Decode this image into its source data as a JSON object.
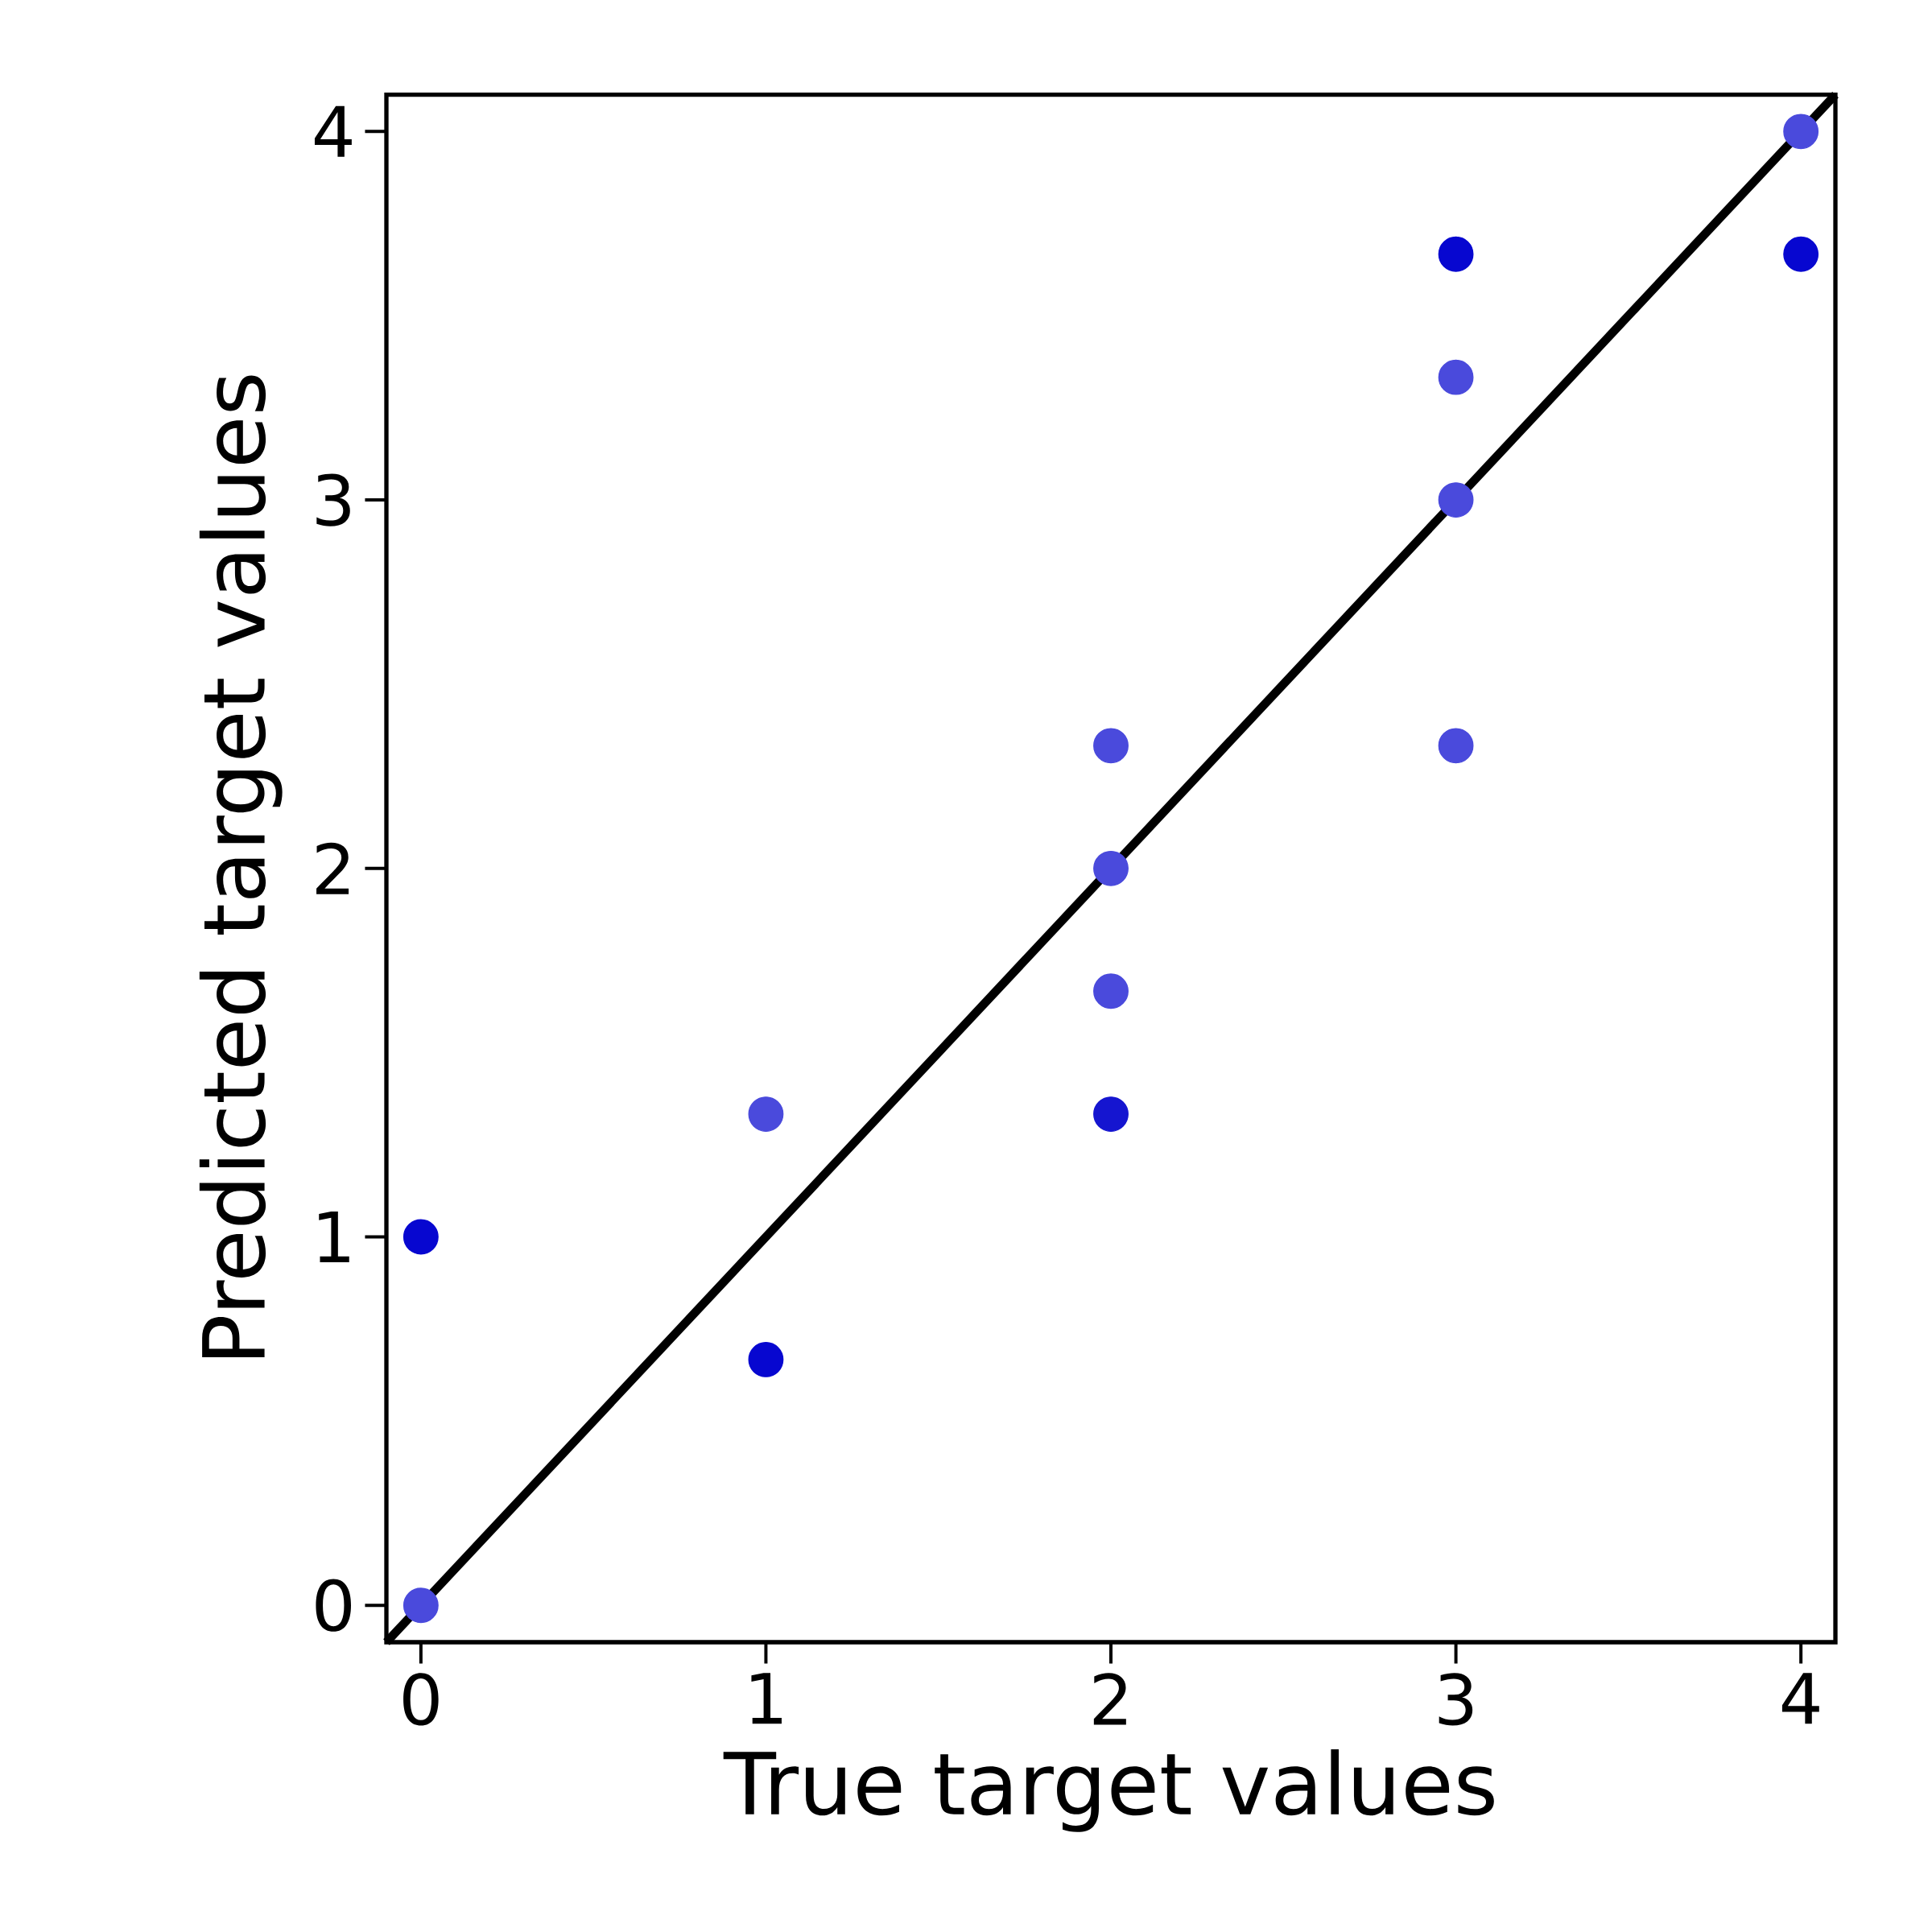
{
  "chart_data": {
    "type": "scatter",
    "xlabel": "True target values",
    "ylabel": "Predicted target values",
    "xlim": [
      -0.1,
      4.1
    ],
    "ylim": [
      -0.1,
      4.1
    ],
    "xticks": [
      0,
      1,
      2,
      3,
      4
    ],
    "yticks": [
      0,
      1,
      2,
      3,
      4
    ],
    "grid": false,
    "series": [
      {
        "marker": "circle",
        "x": [
          0,
          0,
          1,
          1,
          2,
          2,
          2,
          2,
          3,
          3,
          3,
          3,
          4,
          4
        ],
        "values": [
          0,
          1,
          0.667,
          1.333,
          1.333,
          1.667,
          2,
          2.333,
          2.333,
          3,
          3.333,
          3.667,
          3.667,
          4
        ],
        "colors": [
          "#4a4adc",
          "#0707d0",
          "#0707d0",
          "#4a4adc",
          "#1515d0",
          "#4a4adc",
          "#4a4adc",
          "#4a4adc",
          "#4a4adc",
          "#4a4adc",
          "#4a4adc",
          "#0707d0",
          "#0707d0",
          "#4a4adc"
        ]
      },
      {
        "type": "line",
        "marker": "none",
        "color": "#000000",
        "x": [
          -0.1,
          4.1
        ],
        "values": [
          -0.1,
          4.1
        ]
      }
    ]
  }
}
